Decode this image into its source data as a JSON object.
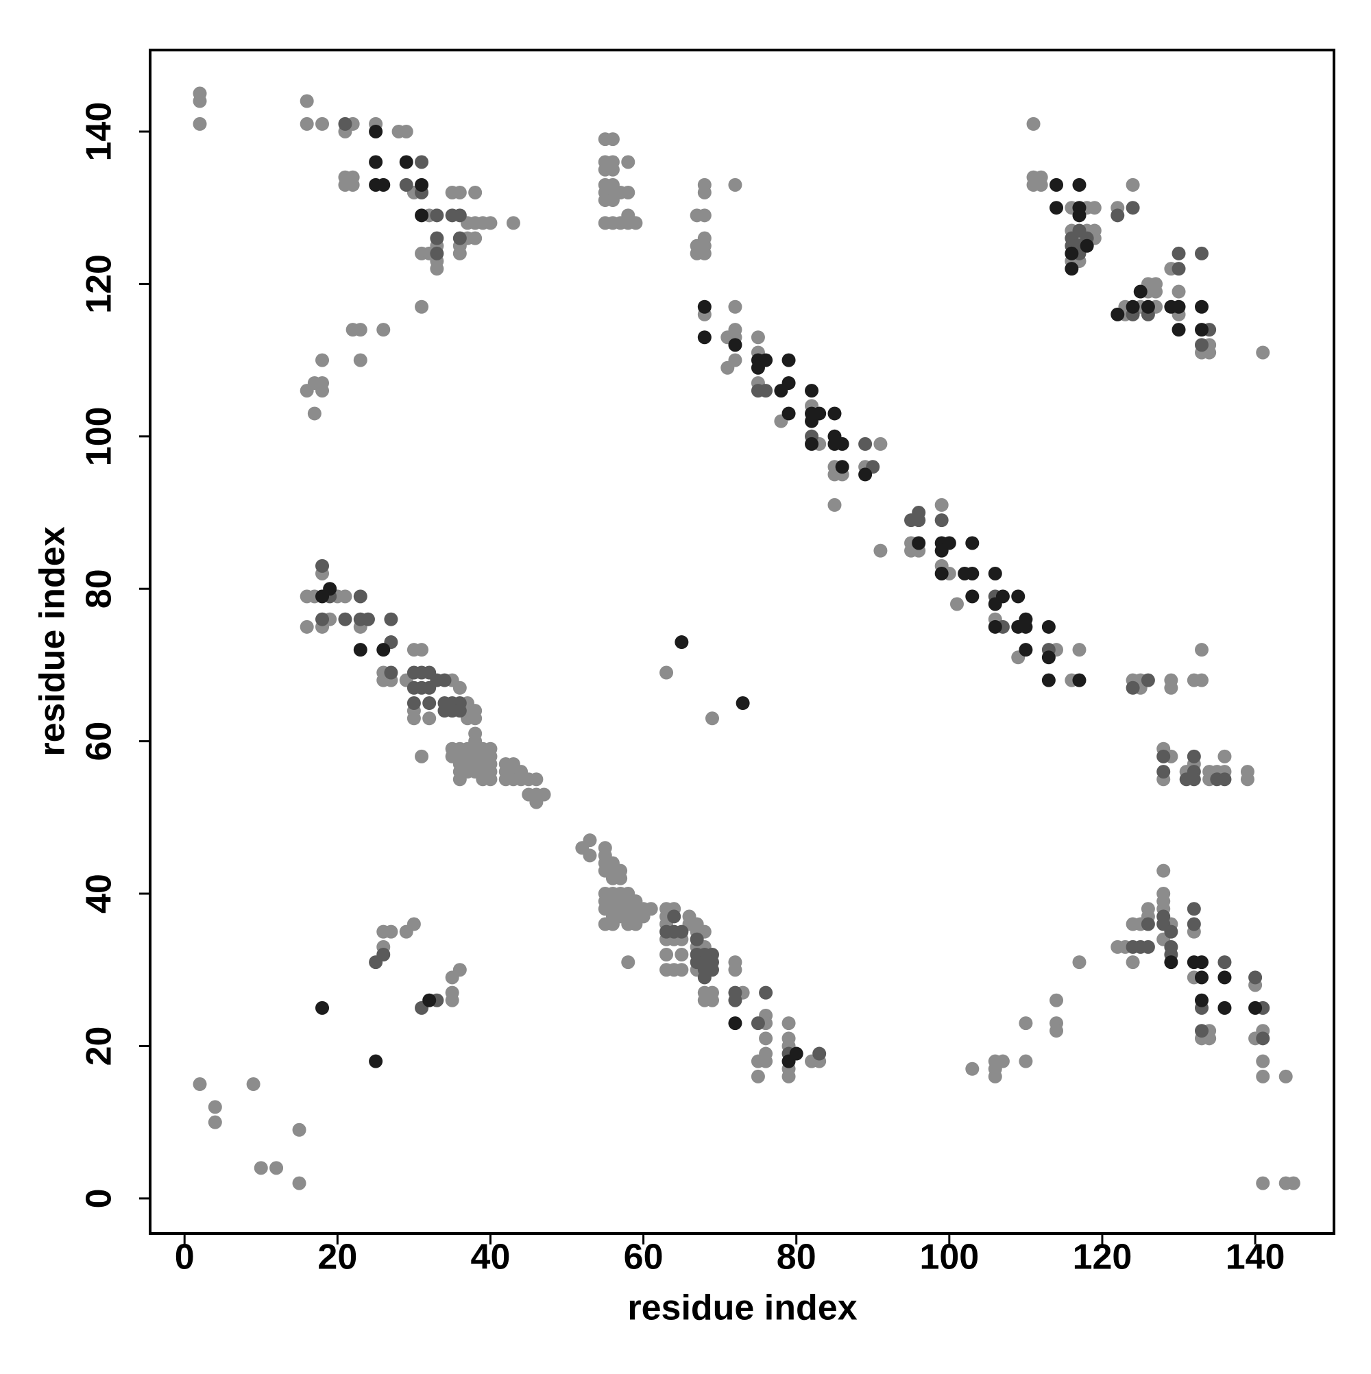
{
  "chart_data": {
    "type": "scatter",
    "xlabel": "residue index",
    "ylabel": "residue index",
    "xlim": [
      -4.5,
      150.3
    ],
    "ylim": [
      -4.6,
      150.7
    ],
    "xticks": [
      0,
      20,
      40,
      60,
      80,
      100,
      120,
      140
    ],
    "yticks": [
      0,
      20,
      40,
      60,
      80,
      100,
      120,
      140
    ],
    "series": [
      {
        "color": "#8c8c8c",
        "x": [
          2,
          2,
          2,
          16,
          16,
          18,
          21,
          22,
          25,
          28,
          29,
          21,
          21,
          22,
          22,
          30,
          32,
          35,
          36,
          38,
          37,
          38,
          39,
          40,
          43,
          37,
          38,
          33,
          33,
          33,
          31,
          32,
          36,
          36,
          31,
          23,
          22,
          26,
          23,
          18,
          16,
          17,
          18,
          18,
          17,
          18,
          16,
          17,
          20,
          21,
          16,
          18,
          19,
          23,
          26,
          26,
          27,
          29,
          30,
          31,
          35,
          36,
          30,
          30,
          32,
          37,
          37,
          38,
          37,
          38,
          31,
          35,
          35,
          36,
          36,
          37,
          37,
          38,
          38,
          38,
          38,
          39,
          39,
          40,
          40,
          36,
          36,
          36,
          37,
          37,
          38,
          38,
          39,
          39,
          39,
          40,
          40,
          40,
          42,
          42,
          42,
          43,
          43,
          43,
          44,
          44,
          45,
          46,
          45,
          46,
          47,
          46,
          52,
          53,
          53,
          55,
          55,
          55,
          55,
          56,
          56,
          56,
          57,
          57,
          55,
          55,
          55,
          56,
          56,
          56,
          56,
          57,
          57,
          57,
          57,
          58,
          58,
          58,
          58,
          58,
          59,
          59,
          59,
          59,
          60,
          60,
          61,
          55,
          56,
          58,
          63,
          63,
          63,
          63,
          64,
          64,
          65,
          66,
          66,
          63,
          65,
          63,
          64,
          65,
          67,
          67,
          67,
          67,
          68,
          68,
          68,
          68,
          69,
          69,
          72,
          72,
          73,
          76,
          76,
          76,
          75,
          76,
          76,
          75,
          79,
          79,
          79,
          79,
          79,
          82,
          83,
          2,
          4,
          4,
          9,
          10,
          12,
          15,
          15,
          26,
          26,
          27,
          29,
          30,
          35,
          35,
          35,
          36,
          63,
          69,
          55,
          56,
          55,
          55,
          56,
          56,
          58,
          55,
          55,
          56,
          56,
          57,
          58,
          55,
          56,
          55,
          56,
          57,
          58,
          59,
          58,
          68,
          68,
          72,
          67,
          68,
          68,
          68,
          67,
          68,
          67,
          68,
          72,
          72,
          72,
          71,
          71,
          72,
          75,
          75,
          75,
          78,
          82,
          83,
          91,
          85,
          85,
          86,
          89,
          85,
          91,
          95,
          95,
          96,
          99,
          99,
          100,
          101,
          106,
          109,
          114,
          116,
          117,
          111,
          111,
          111,
          112,
          112,
          116,
          118,
          116,
          117,
          116,
          117,
          118,
          119,
          119,
          119,
          122,
          124,
          123,
          123,
          125,
          126,
          126,
          127,
          127,
          127,
          129,
          130,
          130,
          133,
          134,
          134,
          141,
          124,
          125,
          125,
          129,
          129,
          132,
          133,
          133,
          128,
          128,
          129,
          131,
          132,
          134,
          134,
          135,
          136,
          136,
          139,
          139,
          117,
          122,
          123,
          124,
          124,
          125,
          126,
          126,
          128,
          128,
          128,
          128,
          128,
          129,
          132,
          132,
          134,
          133,
          134,
          140,
          140,
          141,
          141,
          141,
          144,
          141,
          144,
          145,
          114,
          114,
          114,
          110,
          110,
          106,
          107,
          106,
          106,
          103
        ],
        "values": [
          145,
          144,
          141,
          144,
          141,
          141,
          140,
          141,
          141,
          140,
          140,
          134,
          133,
          134,
          133,
          132,
          129,
          132,
          132,
          132,
          128,
          128,
          128,
          128,
          128,
          126,
          126,
          125,
          123,
          122,
          124,
          124,
          125,
          124,
          117,
          114,
          114,
          114,
          110,
          110,
          106,
          107,
          107,
          106,
          103,
          82,
          79,
          79,
          79,
          79,
          75,
          75,
          76,
          75,
          69,
          68,
          68,
          68,
          72,
          72,
          68,
          67,
          64,
          63,
          63,
          65,
          64,
          64,
          63,
          63,
          58,
          59,
          58,
          59,
          58,
          59,
          58,
          61,
          60,
          59,
          58,
          59,
          58,
          59,
          58,
          57,
          56,
          55,
          57,
          56,
          57,
          56,
          57,
          56,
          55,
          57,
          56,
          55,
          57,
          56,
          55,
          57,
          56,
          55,
          56,
          55,
          55,
          55,
          53,
          53,
          53,
          52,
          46,
          47,
          45,
          46,
          45,
          44,
          43,
          44,
          43,
          42,
          43,
          42,
          40,
          39,
          38,
          40,
          39,
          38,
          37,
          40,
          39,
          38,
          37,
          40,
          39,
          38,
          37,
          36,
          39,
          38,
          37,
          36,
          38,
          37,
          38,
          36,
          36,
          31,
          38,
          37,
          36,
          34,
          38,
          34,
          34,
          37,
          36,
          32,
          32,
          30,
          30,
          30,
          36,
          35,
          33,
          30,
          35,
          33,
          27,
          26,
          27,
          26,
          31,
          30,
          27,
          24,
          23,
          21,
          18,
          19,
          18,
          16,
          23,
          21,
          20,
          17,
          16,
          18,
          18,
          15,
          12,
          10,
          15,
          4,
          4,
          9,
          2,
          33,
          35,
          35,
          35,
          36,
          29,
          27,
          26,
          30,
          69,
          63,
          139,
          139,
          136,
          135,
          136,
          135,
          136,
          133,
          132,
          133,
          132,
          132,
          132,
          131,
          131,
          128,
          128,
          128,
          128,
          128,
          129,
          133,
          132,
          133,
          129,
          129,
          126,
          125,
          124,
          124,
          125,
          116,
          117,
          114,
          113,
          113,
          109,
          110,
          113,
          111,
          107,
          102,
          104,
          99,
          99,
          96,
          95,
          95,
          96,
          91,
          85,
          86,
          85,
          85,
          91,
          83,
          82,
          78,
          76,
          71,
          72,
          68,
          72,
          141,
          134,
          133,
          134,
          133,
          130,
          130,
          127,
          126,
          123,
          123,
          127,
          127,
          126,
          130,
          130,
          133,
          117,
          116,
          117,
          120,
          119,
          120,
          119,
          117,
          122,
          119,
          116,
          111,
          112,
          111,
          111,
          68,
          67,
          68,
          68,
          67,
          68,
          68,
          72,
          59,
          55,
          58,
          56,
          57,
          56,
          55,
          56,
          58,
          56,
          56,
          55,
          31,
          33,
          33,
          36,
          31,
          36,
          38,
          37,
          43,
          40,
          39,
          38,
          34,
          36,
          35,
          29,
          22,
          21,
          21,
          28,
          21,
          22,
          18,
          16,
          16,
          2,
          2,
          2,
          26,
          23,
          22,
          23,
          18,
          18,
          18,
          17,
          16,
          17
        ]
      },
      {
        "color": "#5a5a5a",
        "x": [
          33,
          35,
          36,
          36,
          33,
          33,
          31,
          21,
          29,
          31,
          18,
          19,
          27,
          27,
          27,
          30,
          31,
          32,
          31,
          34,
          30,
          32,
          34,
          35,
          36,
          34,
          35,
          36,
          69,
          69,
          69,
          68,
          67,
          68,
          72,
          72,
          76,
          75,
          79,
          83,
          95,
          96,
          96,
          99,
          106,
          107,
          113,
          116,
          117,
          116,
          117,
          117,
          118,
          124,
          122,
          126,
          124,
          130,
          130,
          133,
          133,
          134,
          128,
          128,
          129,
          129,
          129,
          132,
          132,
          133,
          133,
          136,
          140,
          141,
          141,
          126,
          124,
          125,
          126,
          18,
          21,
          26,
          25,
          31,
          33,
          67,
          67,
          68,
          68,
          64,
          65,
          63,
          64,
          75,
          76,
          89,
          90,
          82,
          132,
          131,
          132,
          132,
          128,
          135,
          136,
          124,
          126,
          128,
          23,
          23,
          24,
          30,
          32,
          33
        ],
        "values": [
          129,
          129,
          129,
          126,
          126,
          124,
          136,
          141,
          133,
          132,
          83,
          79,
          76,
          73,
          69,
          69,
          69,
          69,
          67,
          68,
          65,
          65,
          65,
          65,
          65,
          64,
          64,
          64,
          32,
          31,
          30,
          32,
          34,
          30,
          27,
          26,
          27,
          23,
          19,
          19,
          89,
          89,
          90,
          89,
          79,
          75,
          72,
          126,
          127,
          125,
          125,
          124,
          126,
          130,
          129,
          116,
          116,
          124,
          122,
          124,
          112,
          114,
          37,
          36,
          35,
          33,
          32,
          36,
          38,
          25,
          22,
          31,
          29,
          25,
          21,
          36,
          33,
          33,
          33,
          76,
          76,
          32,
          31,
          25,
          26,
          32,
          31,
          29,
          31,
          35,
          35,
          35,
          37,
          106,
          106,
          99,
          96,
          100,
          58,
          55,
          56,
          55,
          56,
          55,
          55,
          67,
          68,
          58,
          76,
          79,
          76,
          67,
          67,
          68
        ]
      },
      {
        "color": "#1c1c1c",
        "x": [
          25,
          25,
          25,
          26,
          29,
          31,
          31,
          68,
          68,
          72,
          75,
          76,
          75,
          79,
          79,
          78,
          79,
          82,
          82,
          82,
          83,
          82,
          85,
          85,
          85,
          86,
          86,
          89,
          96,
          99,
          99,
          100,
          99,
          102,
          103,
          103,
          103,
          106,
          106,
          107,
          106,
          109,
          109,
          110,
          110,
          110,
          113,
          113,
          113,
          117,
          114,
          114,
          117,
          117,
          117,
          116,
          116,
          118,
          122,
          124,
          125,
          126,
          129,
          130,
          130,
          133,
          133,
          129,
          132,
          133,
          133,
          133,
          136,
          140,
          136,
          19,
          18,
          23,
          26,
          72,
          79,
          80,
          25,
          18,
          73,
          65,
          32
        ],
        "values": [
          140,
          136,
          133,
          133,
          136,
          133,
          129,
          117,
          113,
          112,
          110,
          110,
          109,
          110,
          107,
          106,
          103,
          106,
          103,
          102,
          103,
          99,
          103,
          100,
          99,
          99,
          96,
          95,
          86,
          86,
          85,
          86,
          82,
          82,
          86,
          82,
          79,
          82,
          78,
          79,
          75,
          79,
          75,
          76,
          75,
          72,
          75,
          71,
          68,
          68,
          133,
          130,
          133,
          130,
          129,
          124,
          122,
          125,
          116,
          117,
          119,
          117,
          117,
          117,
          114,
          117,
          114,
          31,
          31,
          31,
          29,
          26,
          29,
          25,
          25,
          80,
          79,
          72,
          72,
          23,
          18,
          19,
          18,
          25,
          65,
          73,
          26
        ]
      }
    ]
  }
}
